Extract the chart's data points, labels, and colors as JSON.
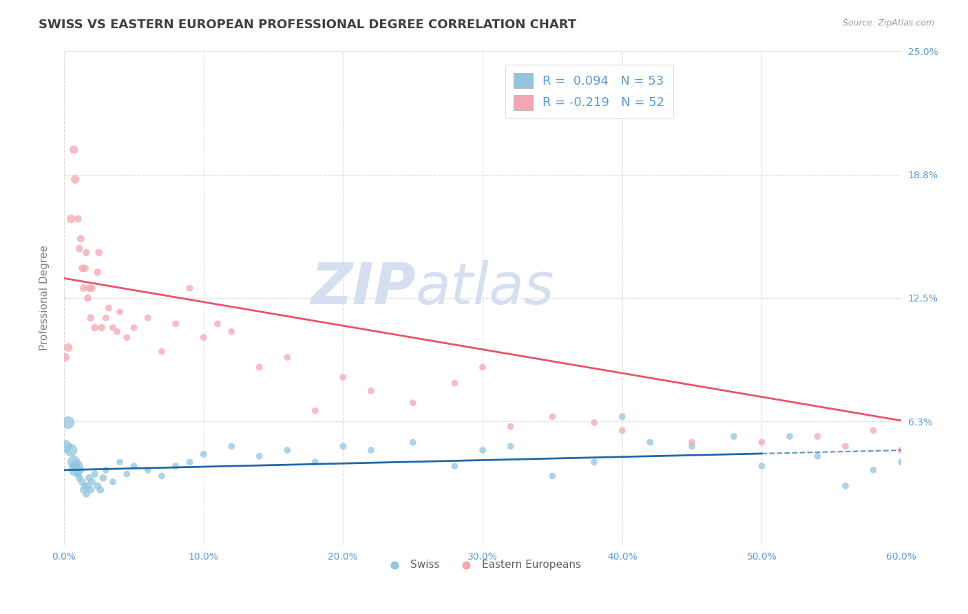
{
  "title": "SWISS VS EASTERN EUROPEAN PROFESSIONAL DEGREE CORRELATION CHART",
  "source": "Source: ZipAtlas.com",
  "ylabel": "Professional Degree",
  "xlim": [
    0.0,
    0.6
  ],
  "ylim": [
    0.0,
    0.25
  ],
  "yticks": [
    0.0,
    0.0625,
    0.125,
    0.1875,
    0.25
  ],
  "ytick_labels": [
    "",
    "6.3%",
    "12.5%",
    "18.8%",
    "25.0%"
  ],
  "xticks": [
    0.0,
    0.1,
    0.2,
    0.3,
    0.4,
    0.5,
    0.6
  ],
  "xtick_labels": [
    "0.0%",
    "10.0%",
    "20.0%",
    "30.0%",
    "40.0%",
    "50.0%",
    "60.0%"
  ],
  "swiss_R": 0.094,
  "swiss_N": 53,
  "eastern_R": -0.219,
  "eastern_N": 52,
  "swiss_color": "#92c5de",
  "eastern_color": "#f4a7b0",
  "trend_swiss_color": "#2166ac",
  "trend_eastern_color": "#e8536a",
  "background_color": "#ffffff",
  "grid_color": "#cccccc",
  "title_color": "#404040",
  "axis_label_color": "#808080",
  "tick_color": "#5b9bd5",
  "watermark_color": "#d5dff0",
  "swiss_trend_start_y": 0.038,
  "swiss_trend_end_y": 0.048,
  "eastern_trend_start_y": 0.135,
  "eastern_trend_end_y": 0.063,
  "swiss_x": [
    0.001,
    0.003,
    0.005,
    0.007,
    0.008,
    0.009,
    0.01,
    0.011,
    0.012,
    0.013,
    0.014,
    0.015,
    0.016,
    0.017,
    0.018,
    0.019,
    0.02,
    0.022,
    0.024,
    0.026,
    0.028,
    0.03,
    0.035,
    0.04,
    0.045,
    0.05,
    0.06,
    0.07,
    0.08,
    0.09,
    0.1,
    0.12,
    0.14,
    0.16,
    0.18,
    0.2,
    0.22,
    0.25,
    0.28,
    0.3,
    0.32,
    0.35,
    0.38,
    0.4,
    0.42,
    0.45,
    0.48,
    0.5,
    0.52,
    0.54,
    0.56,
    0.58,
    0.6
  ],
  "swiss_y": [
    0.05,
    0.062,
    0.048,
    0.042,
    0.038,
    0.04,
    0.036,
    0.034,
    0.038,
    0.032,
    0.028,
    0.03,
    0.026,
    0.03,
    0.034,
    0.028,
    0.032,
    0.036,
    0.03,
    0.028,
    0.034,
    0.038,
    0.032,
    0.042,
    0.036,
    0.04,
    0.038,
    0.035,
    0.04,
    0.042,
    0.046,
    0.05,
    0.045,
    0.048,
    0.042,
    0.05,
    0.048,
    0.052,
    0.04,
    0.048,
    0.05,
    0.035,
    0.042,
    0.065,
    0.052,
    0.05,
    0.055,
    0.04,
    0.055,
    0.045,
    0.03,
    0.038,
    0.042
  ],
  "eastern_x": [
    0.001,
    0.003,
    0.005,
    0.007,
    0.008,
    0.01,
    0.011,
    0.012,
    0.013,
    0.014,
    0.015,
    0.016,
    0.017,
    0.018,
    0.019,
    0.02,
    0.022,
    0.024,
    0.025,
    0.027,
    0.03,
    0.032,
    0.035,
    0.038,
    0.04,
    0.045,
    0.05,
    0.06,
    0.07,
    0.08,
    0.09,
    0.1,
    0.11,
    0.12,
    0.14,
    0.16,
    0.18,
    0.2,
    0.22,
    0.25,
    0.28,
    0.3,
    0.32,
    0.35,
    0.38,
    0.4,
    0.45,
    0.5,
    0.54,
    0.56,
    0.58,
    0.6
  ],
  "eastern_y": [
    0.095,
    0.1,
    0.165,
    0.2,
    0.185,
    0.165,
    0.15,
    0.155,
    0.14,
    0.13,
    0.14,
    0.148,
    0.125,
    0.13,
    0.115,
    0.13,
    0.11,
    0.138,
    0.148,
    0.11,
    0.115,
    0.12,
    0.11,
    0.108,
    0.118,
    0.105,
    0.11,
    0.115,
    0.098,
    0.112,
    0.13,
    0.105,
    0.112,
    0.108,
    0.09,
    0.095,
    0.068,
    0.085,
    0.078,
    0.072,
    0.082,
    0.09,
    0.06,
    0.065,
    0.062,
    0.058,
    0.052,
    0.052,
    0.055,
    0.05,
    0.058,
    0.048
  ]
}
